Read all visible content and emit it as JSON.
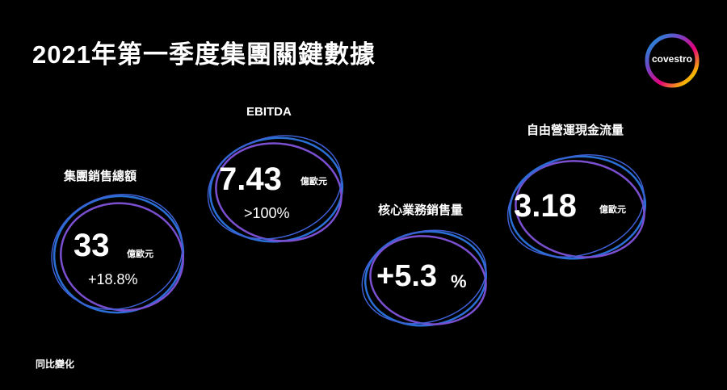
{
  "title": "2021年第一季度集團關鍵數據",
  "logo": {
    "text": "covestro"
  },
  "metrics": [
    {
      "label": "集團銷售總額",
      "value": "33",
      "unit": "億歐元",
      "change": "+18.8%"
    },
    {
      "label": "EBITDA",
      "value": "7.43",
      "unit": "億歐元",
      "change": ">100%"
    },
    {
      "label": "核心業務銷售量",
      "value": "+5.3",
      "unit": "%"
    },
    {
      "label": "自由營運現金流量",
      "value": "3.18",
      "unit": "億歐元"
    }
  ],
  "footnote": "同比變化",
  "colors": {
    "background": "#000000",
    "ring_blue": "#2a6fd6",
    "ring_purple": "#7a4fd0"
  }
}
